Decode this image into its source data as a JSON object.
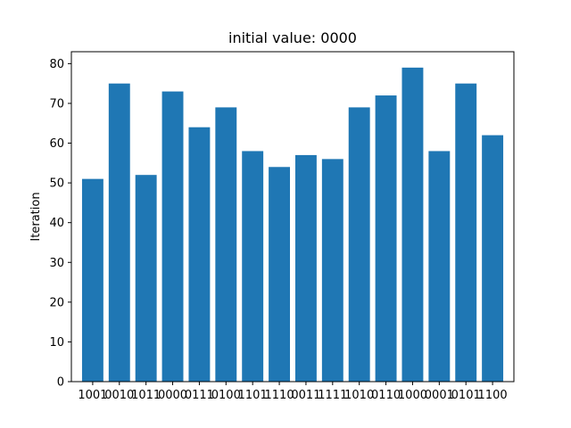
{
  "chart_data": {
    "type": "bar",
    "title": "initial value: 0000",
    "xlabel": "",
    "ylabel": "Iteration",
    "categories": [
      "1001",
      "0010",
      "1011",
      "0000",
      "0111",
      "0100",
      "1101",
      "1110",
      "0011",
      "1111",
      "1010",
      "0110",
      "1000",
      "0001",
      "0101",
      "1100"
    ],
    "values": [
      51,
      75,
      52,
      73,
      64,
      69,
      58,
      54,
      57,
      56,
      69,
      72,
      79,
      58,
      75,
      62
    ],
    "ylim": [
      0,
      83
    ],
    "yticks": [
      0,
      10,
      20,
      30,
      40,
      50,
      60,
      70,
      80
    ],
    "grid": false,
    "bar_color": "#1f77b4"
  }
}
